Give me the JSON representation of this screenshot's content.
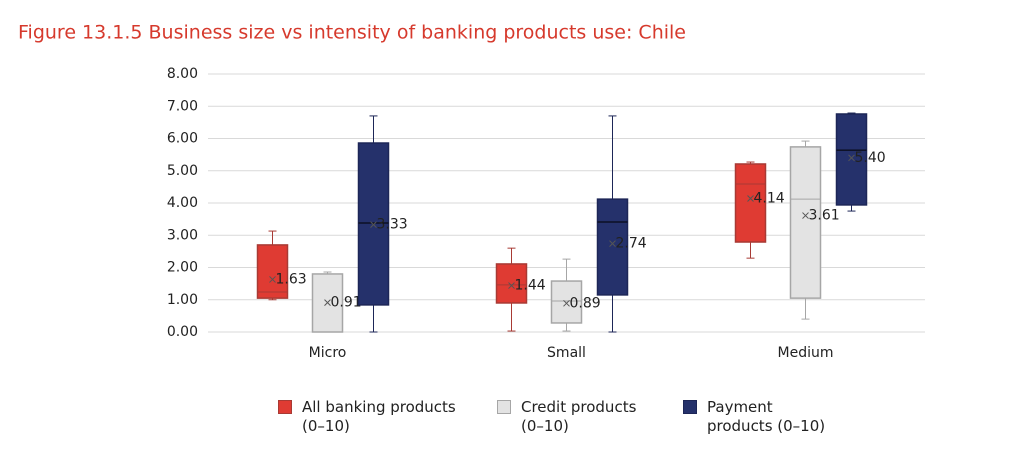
{
  "chart_data": {
    "type": "box",
    "title": "Figure 13.1.5  Business size vs intensity of banking products use: Chile",
    "categories": [
      "Micro",
      "Small",
      "Medium"
    ],
    "ylim": [
      0,
      8
    ],
    "yticks": [
      {
        "value": 0,
        "label": "0.00"
      },
      {
        "value": 1,
        "label": "1.00"
      },
      {
        "value": 2,
        "label": "2.00"
      },
      {
        "value": 3,
        "label": "3.00"
      },
      {
        "value": 4,
        "label": "4.00"
      },
      {
        "value": 5,
        "label": "5.00"
      },
      {
        "value": 6,
        "label": "6.00"
      },
      {
        "value": 7,
        "label": "7.00"
      },
      {
        "value": 8,
        "label": "8.00"
      }
    ],
    "grid": true,
    "series": [
      {
        "name": "All banking products (0–10)",
        "color": "#df3b33",
        "border_color": "#a83a34",
        "low": [
          1.0,
          0.03,
          2.29
        ],
        "q1": [
          1.05,
          0.9,
          2.79
        ],
        "median": [
          1.24,
          1.46,
          4.59
        ],
        "q3": [
          2.7,
          2.11,
          5.21
        ],
        "high": [
          3.13,
          2.6,
          5.27
        ],
        "mean": [
          1.63,
          1.44,
          4.14
        ],
        "mean_labels": [
          "1.63",
          "1.44",
          "4.14"
        ]
      },
      {
        "name": "Credit products (0–10)",
        "color": "#e3e3e3",
        "border_color": "#a6a6a6",
        "low": [
          0,
          0.03,
          0.4
        ],
        "q1": [
          0,
          0.28,
          1.05
        ],
        "median": [
          0,
          0.96,
          4.12
        ],
        "q3": [
          1.8,
          1.58,
          5.74
        ],
        "high": [
          1.86,
          2.26,
          5.92
        ],
        "mean": [
          0.91,
          0.89,
          3.61
        ],
        "mean_labels": [
          "0.91",
          "0.89",
          "3.61"
        ]
      },
      {
        "name": "Payment products (0–10)",
        "color": "#25316b",
        "border_color": "#1d2657",
        "low": [
          0,
          0,
          3.75
        ],
        "q1": [
          0.84,
          1.15,
          3.94
        ],
        "median": [
          3.38,
          3.41,
          5.64
        ],
        "q3": [
          5.86,
          4.12,
          6.76
        ],
        "high": [
          6.7,
          6.7,
          6.79
        ],
        "mean": [
          3.33,
          2.74,
          5.4
        ],
        "mean_labels": [
          "3.33",
          "2.74",
          "5.40"
        ]
      }
    ]
  }
}
